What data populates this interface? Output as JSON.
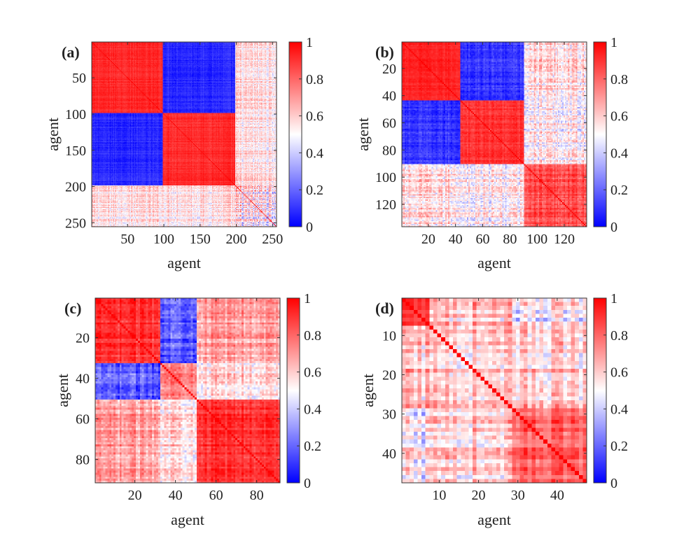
{
  "figure": {
    "colormap": {
      "low": "#0000ff",
      "mid": "#ffffff",
      "high": "#ff0000"
    }
  },
  "chart_data": [
    {
      "type": "heatmap",
      "panel": "(a)",
      "n": 255,
      "xlabel": "agent",
      "ylabel": "agent",
      "xticks": [
        50,
        100,
        150,
        200,
        250
      ],
      "yticks": [
        50,
        100,
        150,
        200,
        250
      ],
      "clim": [
        0,
        1
      ],
      "colorbar_ticks": [
        0,
        0.2,
        0.4,
        0.6,
        0.8,
        1
      ],
      "colorbar_tick_labels": [
        "0",
        "0.2",
        "0.4",
        "0.6",
        "0.8",
        "1"
      ],
      "blocks": [
        [
          1,
          98
        ],
        [
          99,
          198
        ],
        [
          199,
          255
        ]
      ],
      "block_means": [
        [
          0.92,
          0.08,
          0.55
        ],
        [
          0.08,
          0.92,
          0.55
        ],
        [
          0.55,
          0.55,
          0.5
        ]
      ],
      "noise": [
        [
          0.06,
          0.07,
          0.18
        ],
        [
          0.07,
          0.06,
          0.18
        ],
        [
          0.18,
          0.18,
          0.35
        ]
      ]
    },
    {
      "type": "heatmap",
      "panel": "(b)",
      "n": 136,
      "xlabel": "agent",
      "ylabel": "agent",
      "xticks": [
        20,
        40,
        60,
        80,
        100,
        120
      ],
      "yticks": [
        20,
        40,
        60,
        80,
        100,
        120
      ],
      "clim": [
        0,
        1
      ],
      "colorbar_ticks": [
        0,
        0.2,
        0.4,
        0.6,
        0.8,
        1
      ],
      "colorbar_tick_labels": [
        "0",
        "0.2",
        "0.4",
        "0.6",
        "0.8",
        "1"
      ],
      "blocks": [
        [
          1,
          43
        ],
        [
          44,
          90
        ],
        [
          91,
          136
        ]
      ],
      "block_means": [
        [
          0.93,
          0.1,
          0.56
        ],
        [
          0.1,
          0.9,
          0.52
        ],
        [
          0.56,
          0.52,
          0.85
        ]
      ],
      "noise": [
        [
          0.05,
          0.09,
          0.2
        ],
        [
          0.09,
          0.07,
          0.2
        ],
        [
          0.2,
          0.2,
          0.12
        ]
      ]
    },
    {
      "type": "heatmap",
      "panel": "(c)",
      "n": 91,
      "xlabel": "agent",
      "ylabel": "agent",
      "xticks": [
        20,
        40,
        60,
        80
      ],
      "yticks": [
        20,
        40,
        60,
        80
      ],
      "clim": [
        0,
        1
      ],
      "colorbar_ticks": [
        0,
        0.2,
        0.4,
        0.6,
        0.8,
        1
      ],
      "colorbar_tick_labels": [
        "0",
        "0.2",
        "0.4",
        "0.6",
        "0.8",
        "1"
      ],
      "blocks": [
        [
          1,
          32
        ],
        [
          33,
          50
        ],
        [
          51,
          91
        ]
      ],
      "block_means": [
        [
          0.9,
          0.2,
          0.68
        ],
        [
          0.2,
          0.78,
          0.58
        ],
        [
          0.68,
          0.58,
          0.9
        ]
      ],
      "noise": [
        [
          0.1,
          0.15,
          0.15
        ],
        [
          0.15,
          0.15,
          0.18
        ],
        [
          0.15,
          0.18,
          0.1
        ]
      ]
    },
    {
      "type": "heatmap",
      "panel": "(d)",
      "n": 47,
      "xlabel": "agent",
      "ylabel": "agent",
      "xticks": [
        10,
        20,
        30,
        40
      ],
      "yticks": [
        10,
        20,
        30,
        40
      ],
      "clim": [
        0,
        1
      ],
      "colorbar_ticks": [
        0,
        0.2,
        0.4,
        0.6,
        0.8,
        1
      ],
      "colorbar_tick_labels": [
        "0",
        "0.2",
        "0.4",
        "0.6",
        "0.8",
        "1"
      ],
      "blocks": [
        [
          1,
          7
        ],
        [
          8,
          28
        ],
        [
          29,
          47
        ]
      ],
      "block_means": [
        [
          0.88,
          0.62,
          0.5
        ],
        [
          0.62,
          0.62,
          0.6
        ],
        [
          0.5,
          0.6,
          0.8
        ]
      ],
      "noise": [
        [
          0.08,
          0.2,
          0.22
        ],
        [
          0.2,
          0.2,
          0.2
        ],
        [
          0.22,
          0.2,
          0.14
        ]
      ]
    }
  ]
}
